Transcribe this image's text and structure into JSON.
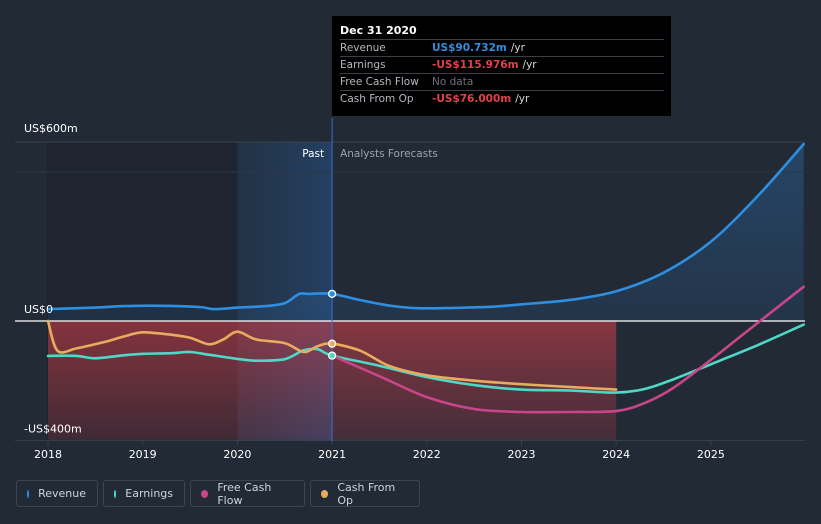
{
  "tooltip": {
    "date": "Dec 31 2020",
    "rows": [
      {
        "label": "Revenue",
        "value": "US$90.732m",
        "unit": "/yr",
        "color": "#2f8fe0"
      },
      {
        "label": "Earnings",
        "value": "-US$115.976m",
        "unit": "/yr",
        "color": "#e5404a"
      },
      {
        "label": "Free Cash Flow",
        "value": "No data",
        "unit": ""
      },
      {
        "label": "Cash From Op",
        "value": "-US$76.000m",
        "unit": "/yr",
        "color": "#e5404a"
      }
    ]
  },
  "legend": [
    {
      "label": "Revenue",
      "color": "#2e8fe0"
    },
    {
      "label": "Earnings",
      "color": "#4fd8c6"
    },
    {
      "label": "Free Cash Flow",
      "color": "#c84588"
    },
    {
      "label": "Cash From Op",
      "color": "#e8ab5f"
    }
  ],
  "chart_data": {
    "type": "line",
    "title": "",
    "xlabel": "",
    "ylabel": "",
    "y_tick_labels": [
      "US$600m",
      "US$0",
      "-US$400m"
    ],
    "x_ticks": [
      2018,
      2019,
      2020,
      2021,
      2022,
      2023,
      2024,
      2025
    ],
    "ylim": [
      -400,
      600
    ],
    "xlim": [
      2018,
      2025.98
    ],
    "divider_x": 2021.0,
    "past_label": "Past",
    "forecast_label": "Analysts Forecasts",
    "highlight_range": [
      2020.0,
      2021.0
    ],
    "series": [
      {
        "name": "Revenue",
        "color": "#2e8fe0",
        "x": [
          2018.0,
          2018.5,
          2018.8,
          2019.2,
          2019.6,
          2019.75,
          2020.0,
          2020.3,
          2020.5,
          2020.65,
          2020.75,
          2021.0,
          2021.3,
          2021.6,
          2021.9,
          2022.3,
          2022.7,
          2023.0,
          2023.5,
          2024.0,
          2024.5,
          2025.0,
          2025.5,
          2025.98
        ],
        "y": [
          40,
          45,
          50,
          51,
          47,
          40,
          45,
          50,
          60,
          90,
          91,
          91,
          70,
          52,
          43,
          44,
          48,
          56,
          70,
          100,
          162,
          266,
          421,
          593
        ]
      },
      {
        "name": "Earnings",
        "color": "#4fd8c6",
        "x": [
          2018.0,
          2018.3,
          2018.5,
          2018.8,
          2019.0,
          2019.3,
          2019.5,
          2019.7,
          2020.0,
          2020.2,
          2020.5,
          2020.7,
          2020.85,
          2021.0,
          2021.5,
          2022.0,
          2022.5,
          2023.0,
          2023.5,
          2024.0,
          2024.3,
          2024.6,
          2025.0,
          2025.5,
          2025.98
        ],
        "y": [
          -117,
          -117,
          -125,
          -115,
          -110,
          -108,
          -104,
          -113,
          -127,
          -133,
          -128,
          -98,
          -95,
          -116,
          -150,
          -188,
          -215,
          -230,
          -233,
          -240,
          -228,
          -196,
          -145,
          -80,
          -12
        ]
      },
      {
        "name": "Free Cash Flow",
        "color": "#c84588",
        "x": [
          2021.0,
          2021.5,
          2022.0,
          2022.5,
          2023.0,
          2023.5,
          2024.0,
          2024.3,
          2024.6,
          2025.0,
          2025.3,
          2025.6,
          2025.98
        ],
        "y": [
          -116,
          -185,
          -255,
          -295,
          -305,
          -305,
          -302,
          -275,
          -225,
          -130,
          -55,
          20,
          115
        ]
      },
      {
        "name": "Cash From Op",
        "color": "#e8ab5f",
        "x": [
          2018.0,
          2018.1,
          2018.3,
          2018.6,
          2018.8,
          2019.0,
          2019.3,
          2019.5,
          2019.7,
          2019.85,
          2020.0,
          2020.2,
          2020.5,
          2020.7,
          2020.85,
          2021.0,
          2021.3,
          2021.6,
          2022.0,
          2022.5,
          2023.0,
          2023.5,
          2024.0
        ],
        "y": [
          0,
          -100,
          -92,
          -70,
          -52,
          -38,
          -46,
          -56,
          -78,
          -62,
          -36,
          -62,
          -74,
          -104,
          -84,
          -76,
          -100,
          -150,
          -182,
          -200,
          -212,
          -221,
          -230
        ]
      }
    ],
    "markers": [
      {
        "series": "Revenue",
        "x": 2021.0,
        "y": 91
      },
      {
        "series": "Cash From Op",
        "x": 2021.0,
        "y": -76
      },
      {
        "series": "Earnings",
        "x": 2021.0,
        "y": -116
      }
    ]
  }
}
